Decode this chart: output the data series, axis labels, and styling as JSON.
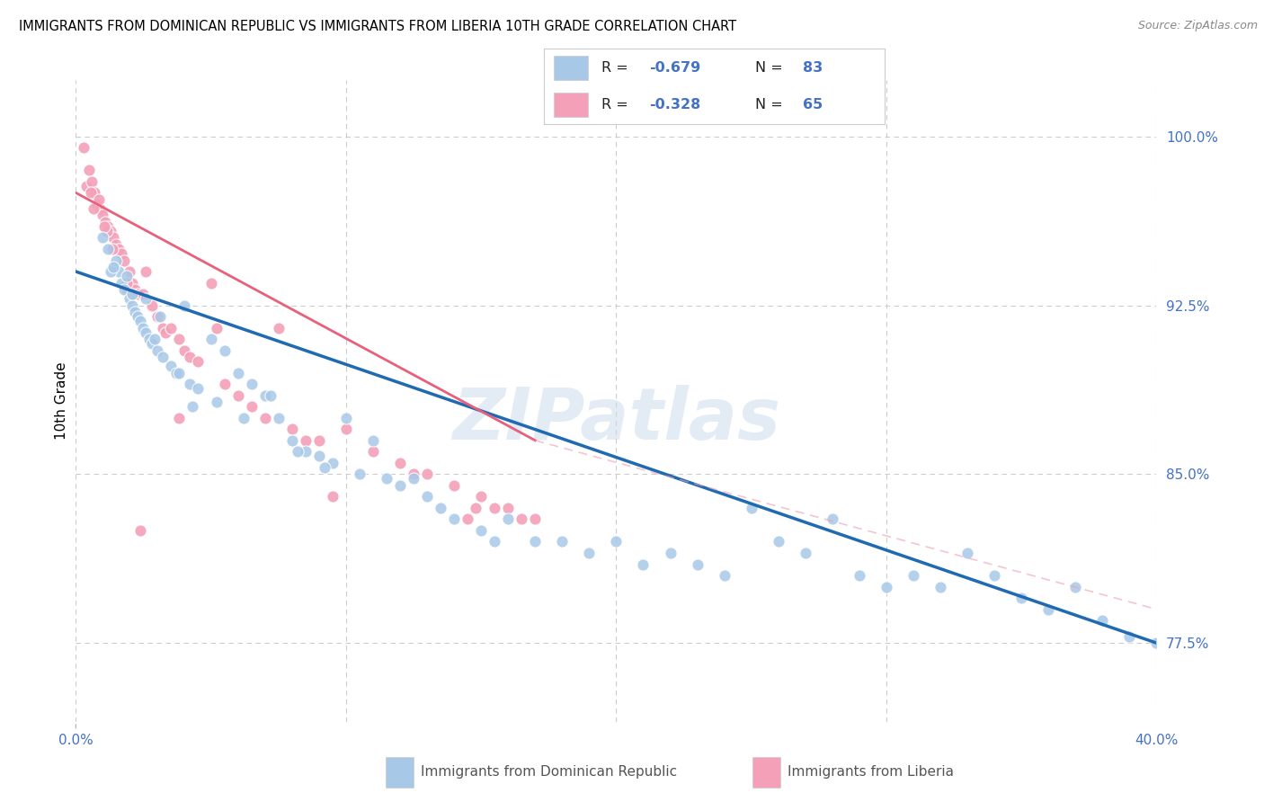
{
  "title": "IMMIGRANTS FROM DOMINICAN REPUBLIC VS IMMIGRANTS FROM LIBERIA 10TH GRADE CORRELATION CHART",
  "source": "Source: ZipAtlas.com",
  "ylabel": "10th Grade",
  "right_yticks": [
    100.0,
    92.5,
    85.0,
    77.5
  ],
  "right_yticklabels": [
    "100.0%",
    "92.5%",
    "85.0%",
    "77.5%"
  ],
  "xmin": 0.0,
  "xmax": 40.0,
  "ymin": 74.0,
  "ymax": 102.5,
  "color_blue": "#a8c8e8",
  "color_pink": "#f4a0b8",
  "color_blue_line": "#1f6ab0",
  "color_pink_line": "#e8607a",
  "color_pink_dashed": "#e8a0b0",
  "tick_label_color": "#4472C4",
  "grid_color": "#cccccc",
  "watermark": "ZIPatlas",
  "bottom_label1": "Immigrants from Dominican Republic",
  "bottom_label2": "Immigrants from Liberia",
  "blue_line_x0": 0.0,
  "blue_line_y0": 94.0,
  "blue_line_x1": 40.0,
  "blue_line_y1": 77.5,
  "pink_line_x0": 0.0,
  "pink_line_y0": 97.5,
  "pink_line_x1": 17.0,
  "pink_line_y1": 86.5,
  "pink_dashed_x0": 17.0,
  "pink_dashed_y0": 86.5,
  "pink_dashed_x1": 40.0,
  "pink_dashed_y1": 79.0,
  "blue_x": [
    1.0,
    1.2,
    1.5,
    1.6,
    1.7,
    1.8,
    1.9,
    2.0,
    2.1,
    2.2,
    2.3,
    2.4,
    2.5,
    2.6,
    2.7,
    2.8,
    2.9,
    3.0,
    3.2,
    3.5,
    3.7,
    4.0,
    4.2,
    4.5,
    5.0,
    5.5,
    6.0,
    6.5,
    7.0,
    7.5,
    8.0,
    8.5,
    9.0,
    9.5,
    10.0,
    11.0,
    12.0,
    12.5,
    13.0,
    14.0,
    15.0,
    16.0,
    17.0,
    18.0,
    19.0,
    20.0,
    21.0,
    22.0,
    23.0,
    24.0,
    25.0,
    26.0,
    27.0,
    28.0,
    29.0,
    30.0,
    31.0,
    32.0,
    33.0,
    34.0,
    35.0,
    36.0,
    37.0,
    38.0,
    39.0,
    40.0,
    1.3,
    1.4,
    2.1,
    2.6,
    3.1,
    3.8,
    4.3,
    5.2,
    6.2,
    7.2,
    8.2,
    9.2,
    10.5,
    11.5,
    13.5,
    15.5
  ],
  "blue_y": [
    95.5,
    95.0,
    94.5,
    94.0,
    93.5,
    93.2,
    93.8,
    92.8,
    92.5,
    92.2,
    92.0,
    91.8,
    91.5,
    91.3,
    91.0,
    90.8,
    91.0,
    90.5,
    90.2,
    89.8,
    89.5,
    92.5,
    89.0,
    88.8,
    91.0,
    90.5,
    89.5,
    89.0,
    88.5,
    87.5,
    86.5,
    86.0,
    85.8,
    85.5,
    87.5,
    86.5,
    84.5,
    84.8,
    84.0,
    83.0,
    82.5,
    83.0,
    82.0,
    82.0,
    81.5,
    82.0,
    81.0,
    81.5,
    81.0,
    80.5,
    83.5,
    82.0,
    81.5,
    83.0,
    80.5,
    80.0,
    80.5,
    80.0,
    81.5,
    80.5,
    79.5,
    79.0,
    80.0,
    78.5,
    77.8,
    77.5,
    94.0,
    94.2,
    93.0,
    92.8,
    92.0,
    89.5,
    88.0,
    88.2,
    87.5,
    88.5,
    86.0,
    85.3,
    85.0,
    84.8,
    83.5,
    82.0
  ],
  "pink_x": [
    0.3,
    0.4,
    0.5,
    0.6,
    0.7,
    0.8,
    0.9,
    1.0,
    1.1,
    1.2,
    1.3,
    1.4,
    1.5,
    1.6,
    1.7,
    1.8,
    1.9,
    2.0,
    2.1,
    2.2,
    2.3,
    2.5,
    2.6,
    2.8,
    3.0,
    3.2,
    3.3,
    3.5,
    3.8,
    4.0,
    4.2,
    4.5,
    5.0,
    5.5,
    6.0,
    6.5,
    7.0,
    7.5,
    8.0,
    8.5,
    9.0,
    10.0,
    11.0,
    12.0,
    12.5,
    13.0,
    14.0,
    14.5,
    15.0,
    15.5,
    16.0,
    16.5,
    17.0,
    0.65,
    1.15,
    5.2,
    9.5,
    14.8,
    2.4,
    0.55,
    0.85,
    1.05,
    1.35,
    1.9,
    3.8
  ],
  "pink_y": [
    99.5,
    97.8,
    98.5,
    98.0,
    97.5,
    97.0,
    96.8,
    96.5,
    96.2,
    96.0,
    95.8,
    95.5,
    95.2,
    95.0,
    94.8,
    94.5,
    93.2,
    94.0,
    93.5,
    93.2,
    93.0,
    93.0,
    94.0,
    92.5,
    92.0,
    91.5,
    91.3,
    91.5,
    91.0,
    90.5,
    90.2,
    90.0,
    93.5,
    89.0,
    88.5,
    88.0,
    87.5,
    91.5,
    87.0,
    86.5,
    86.5,
    87.0,
    86.0,
    85.5,
    85.0,
    85.0,
    84.5,
    83.0,
    84.0,
    83.5,
    83.5,
    83.0,
    83.0,
    96.8,
    95.8,
    91.5,
    84.0,
    83.5,
    82.5,
    97.5,
    97.2,
    96.0,
    95.0,
    93.5,
    87.5
  ]
}
